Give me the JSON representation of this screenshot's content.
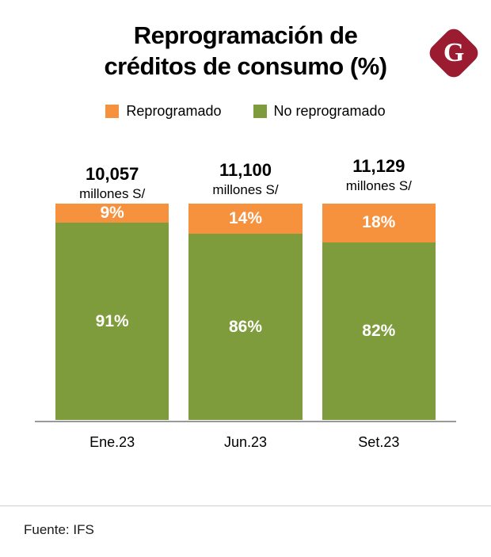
{
  "title": {
    "line1": "Reprogramación de",
    "line2": "créditos de consumo (%)"
  },
  "logo": {
    "letter": "G",
    "color": "#9b1b31"
  },
  "legend": [
    {
      "label": "Reprogramado",
      "color": "#F6913E"
    },
    {
      "label": "No reprogramado",
      "color": "#7E9C3C"
    }
  ],
  "chart_data": {
    "type": "bar",
    "stacked": true,
    "title": "Reprogramación de créditos de consumo (%)",
    "categories": [
      "Ene.23",
      "Jun.23",
      "Set.23"
    ],
    "totals": [
      "10,057",
      "11,100",
      "11,129"
    ],
    "totals_unit": "millones S/",
    "series": [
      {
        "name": "Reprogramado",
        "color": "#F6913E",
        "values": [
          9,
          14,
          18
        ]
      },
      {
        "name": "No reprogramado",
        "color": "#7E9C3C",
        "values": [
          91,
          86,
          82
        ]
      }
    ],
    "value_suffix": "%",
    "ylim": [
      0,
      100
    ],
    "legend_position": "top",
    "grid": false
  },
  "source": "Fuente: IFS"
}
